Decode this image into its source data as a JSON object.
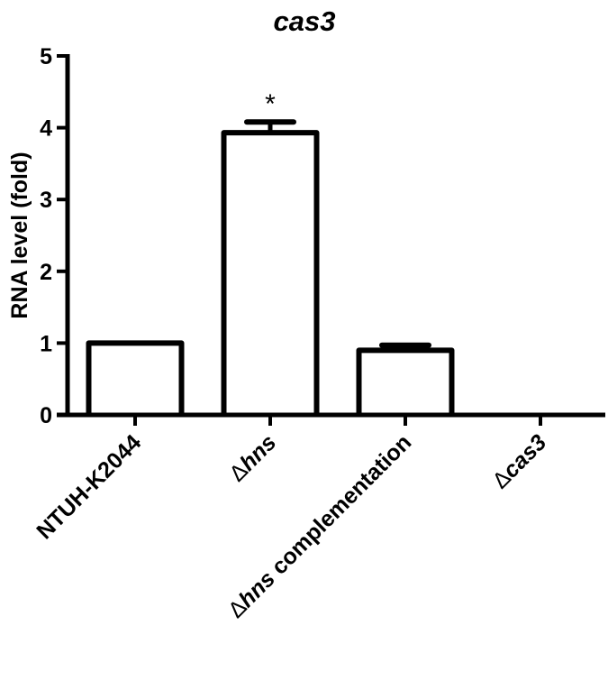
{
  "chart_data": {
    "type": "bar",
    "title": "cas3",
    "xlabel": "",
    "ylabel": "RNA level (fold)",
    "ylim": [
      0,
      5
    ],
    "yticks": [
      0,
      1,
      2,
      3,
      4,
      5
    ],
    "grid": false,
    "legend": null,
    "categories": [
      {
        "prefix": "",
        "italic": "",
        "suffix": "NTUH-K2044"
      },
      {
        "prefix": "Δ",
        "italic": "hns",
        "suffix": ""
      },
      {
        "prefix": "Δ",
        "italic": "hns",
        "suffix": " complementation"
      },
      {
        "prefix": "Δ",
        "italic": "cas3",
        "suffix": ""
      }
    ],
    "category_names": [
      "NTUH-K2044",
      "Δhns",
      "Δhns complementation",
      "Δcas3"
    ],
    "values": [
      1.0,
      3.93,
      0.9,
      0.0
    ],
    "errors": [
      0.0,
      0.15,
      0.07,
      0.0
    ],
    "annotations": [
      {
        "category": "Δhns",
        "text": "*"
      }
    ]
  }
}
